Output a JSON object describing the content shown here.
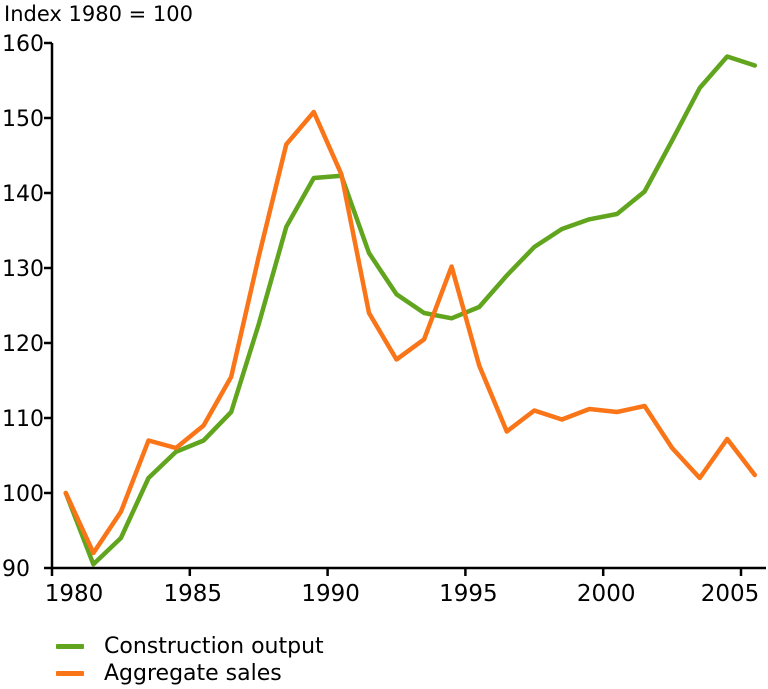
{
  "chart_data": {
    "type": "line",
    "title": "Index 1980 = 100",
    "xlabel": "",
    "ylabel": "",
    "x": [
      1980,
      1981,
      1982,
      1983,
      1984,
      1985,
      1986,
      1987,
      1988,
      1989,
      1990,
      1991,
      1992,
      1993,
      1994,
      1995,
      1996,
      1997,
      1998,
      1999,
      2000,
      2001,
      2002,
      2003,
      2004,
      2005
    ],
    "series": [
      {
        "name": "Construction output",
        "color": "#60a51d",
        "values": [
          100,
          90.5,
          94,
          102,
          105.5,
          107,
          110.8,
          122.5,
          135.5,
          142,
          142.3,
          132,
          126.5,
          124,
          123.3,
          124.8,
          129,
          132.8,
          135.2,
          136.5,
          137.2,
          140.2,
          147,
          154,
          158.2,
          157
        ]
      },
      {
        "name": "Aggregate sales",
        "color": "#fa7418",
        "values": [
          100,
          92,
          97.5,
          107,
          106,
          109,
          115.5,
          131.5,
          146.5,
          150.8,
          142.5,
          124,
          117.8,
          120.5,
          130.2,
          117,
          108.2,
          111,
          109.8,
          111.2,
          110.8,
          111.6,
          106,
          102,
          107.2,
          102.4
        ]
      }
    ],
    "ylim": [
      90,
      160
    ],
    "xlim": [
      1980,
      2005.6
    ],
    "y_ticks": [
      90,
      100,
      110,
      120,
      130,
      140,
      150,
      160
    ],
    "x_ticks": [
      1980,
      1985,
      1990,
      1995,
      2000,
      2005
    ],
    "grid": false,
    "legend_position": "bottom-left",
    "axis_color": "#000000"
  }
}
